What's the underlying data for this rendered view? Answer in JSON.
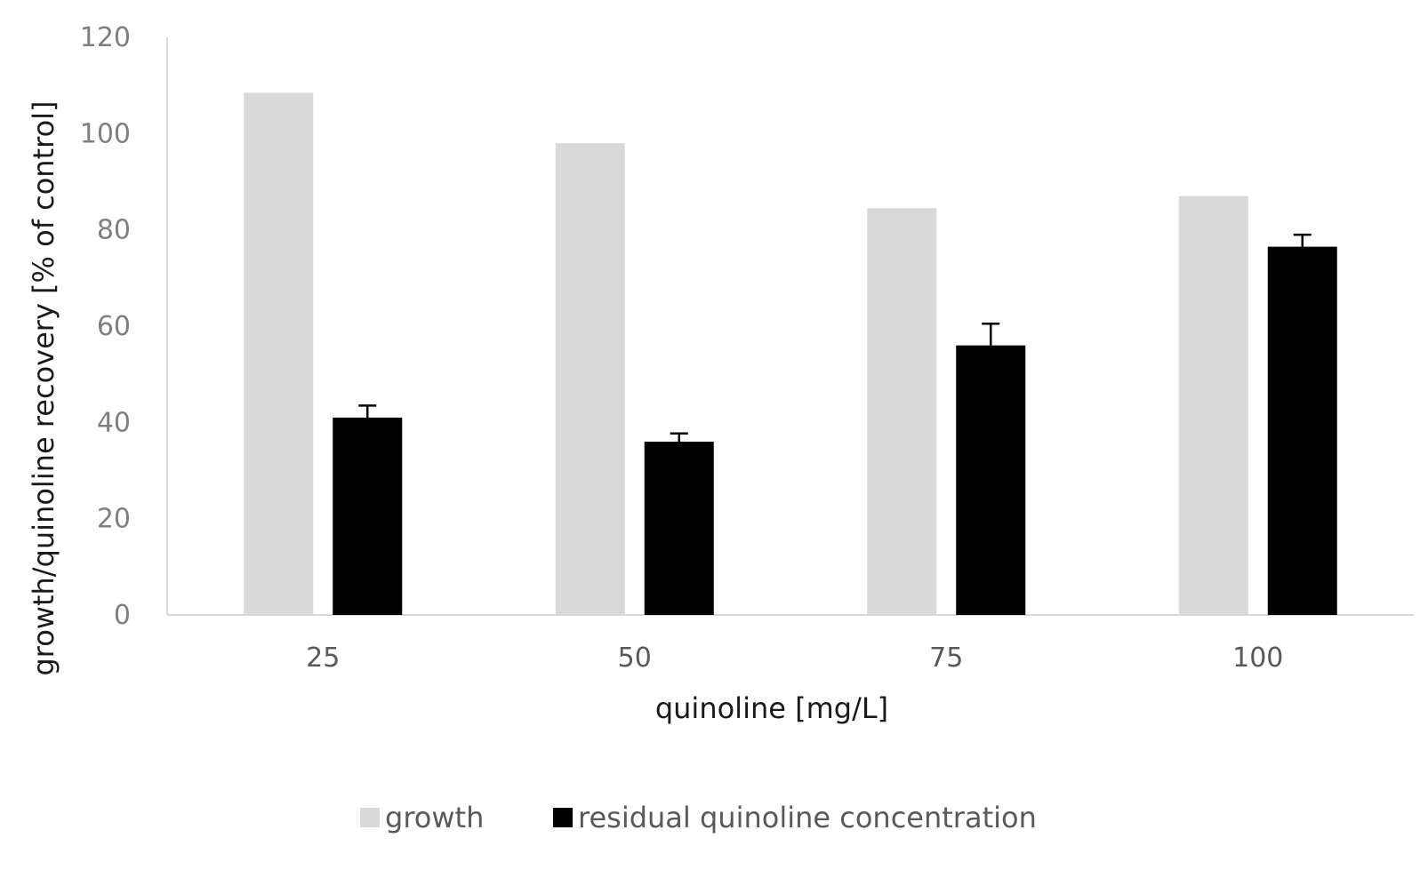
{
  "chart_data": {
    "type": "bar",
    "categories": [
      "25",
      "50",
      "75",
      "100"
    ],
    "series": [
      {
        "name": "growth",
        "values": [
          108.5,
          98,
          84.5,
          87
        ],
        "color": "#d9d9d9"
      },
      {
        "name": "residual quinoline concentration",
        "values": [
          41,
          36,
          56,
          76.5
        ],
        "error": [
          2.5,
          1.7,
          4.5,
          2.5
        ],
        "color": "#000000"
      }
    ],
    "xlabel": "quinoline [mg/L]",
    "ylabel": "growth/quinoline recovery [% of control]",
    "ylim": [
      0,
      120
    ],
    "yticks": [
      "0",
      "20",
      "40",
      "60",
      "80",
      "100",
      "120"
    ],
    "grid": false,
    "legend_position": "bottom"
  }
}
